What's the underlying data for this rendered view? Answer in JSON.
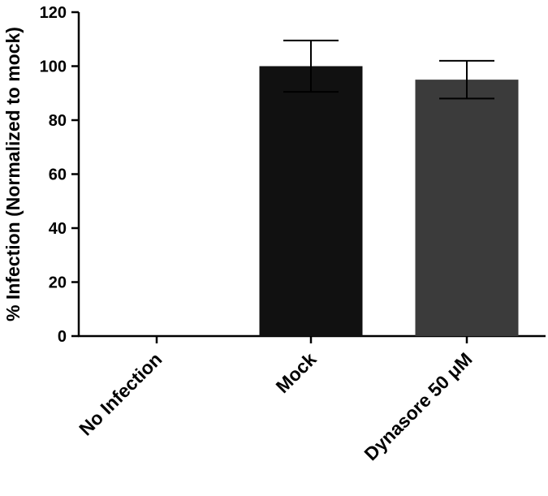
{
  "chart_data": {
    "type": "bar",
    "title": "",
    "xlabel": "",
    "ylabel": "% Infection (Normalized to mock)",
    "ylim": [
      0,
      120
    ],
    "yticks": [
      0,
      20,
      40,
      60,
      80,
      100,
      120
    ],
    "categories": [
      "No Infection",
      "Mock",
      "Dynasore 50 μM"
    ],
    "values": [
      0,
      100,
      95
    ],
    "error_upper": [
      0,
      109.5,
      102
    ],
    "error_lower": [
      0,
      90.5,
      88
    ],
    "colors": [
      "#111111",
      "#111111",
      "#3b3b3b"
    ],
    "grid": false,
    "legend": "none"
  }
}
